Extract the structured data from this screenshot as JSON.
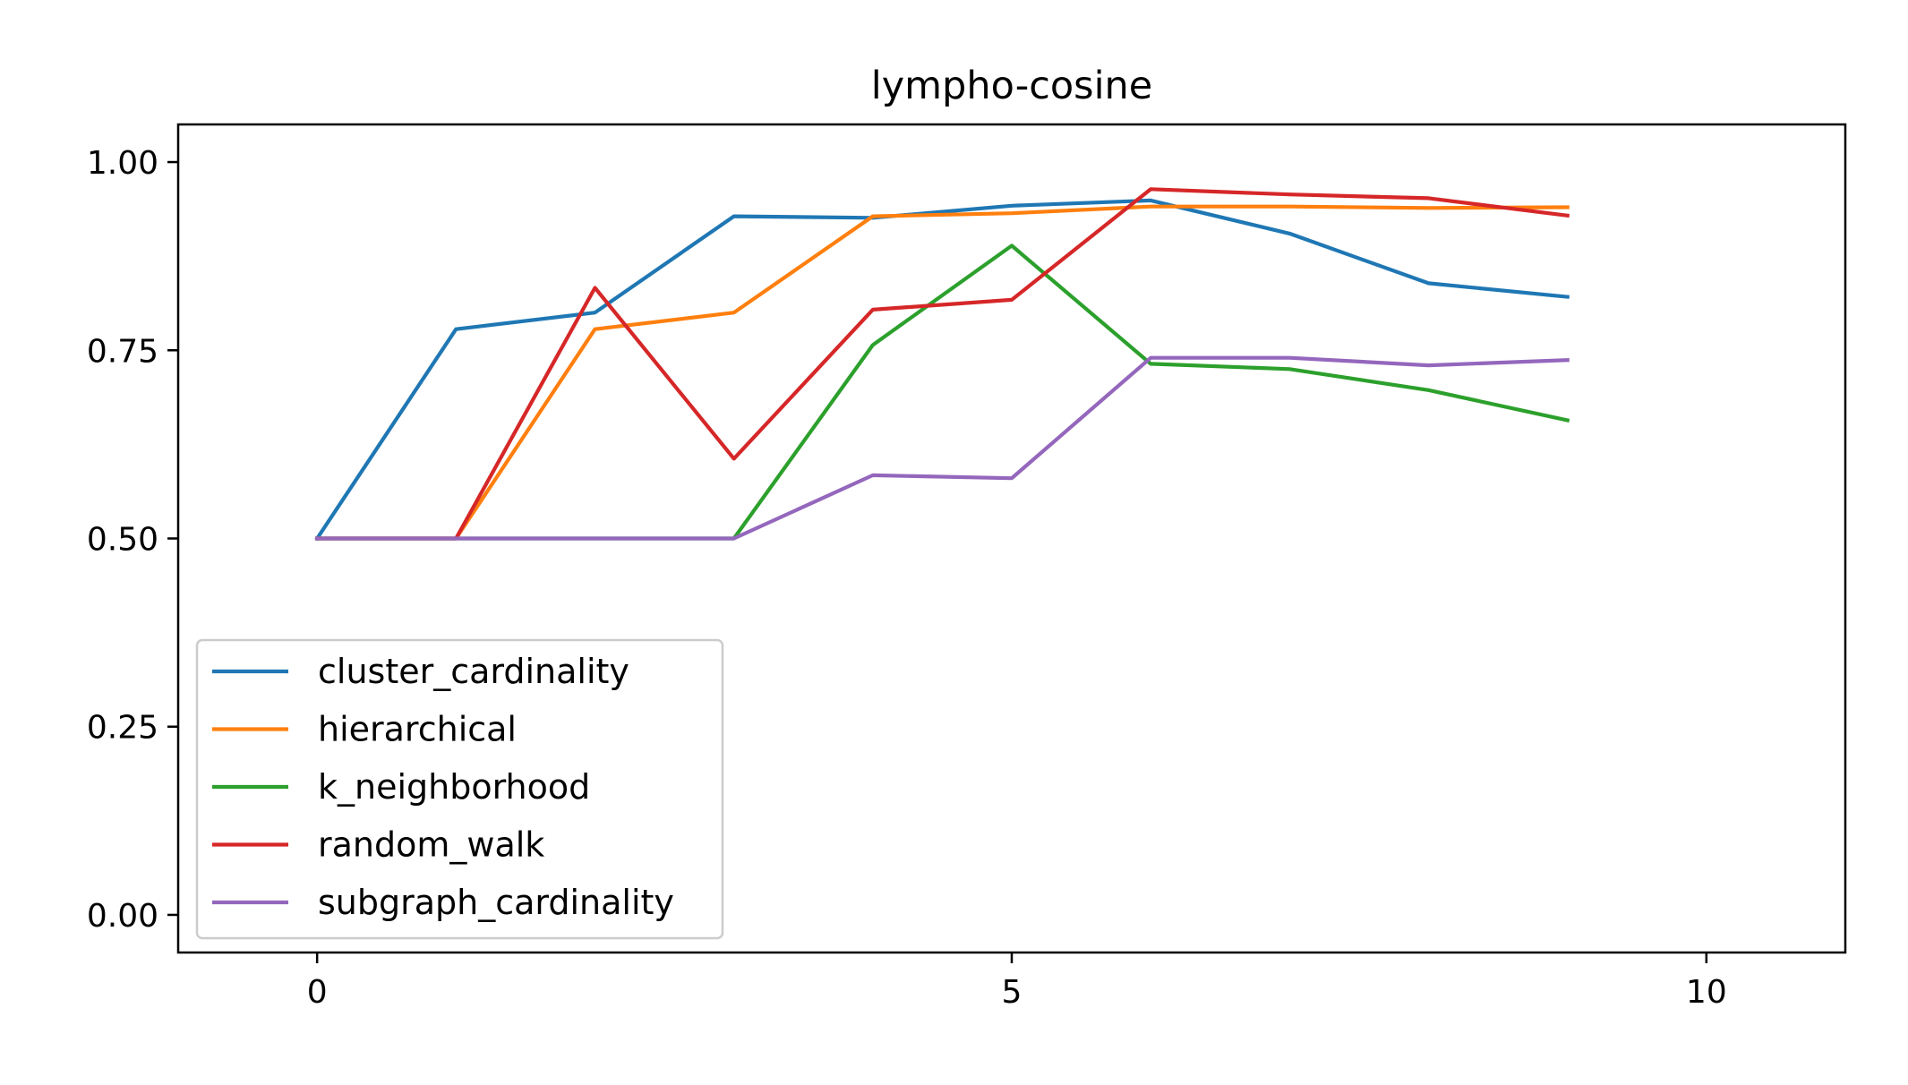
{
  "chart_data": {
    "type": "line",
    "title": "lympho-cosine",
    "xlabel": "",
    "ylabel": "",
    "xlim": [
      -1,
      11
    ],
    "ylim": [
      -0.05,
      1.05
    ],
    "xticks": [
      0,
      5,
      10
    ],
    "xtick_labels": [
      "0",
      "5",
      "10"
    ],
    "yticks": [
      0,
      0.25,
      0.5,
      0.75,
      1.0
    ],
    "ytick_labels": [
      "0.00",
      "0.25",
      "0.50",
      "0.75",
      "1.00"
    ],
    "grid": false,
    "legend_position": "lower-left",
    "x": [
      0,
      1,
      2,
      3,
      4,
      5,
      6,
      7,
      8,
      9
    ],
    "series": [
      {
        "name": "cluster_cardinality",
        "color": "#1f77b4",
        "values": [
          0.5,
          0.778,
          0.8,
          0.928,
          0.926,
          0.942,
          0.949,
          0.905,
          0.839,
          0.821
        ]
      },
      {
        "name": "hierarchical",
        "color": "#ff7f0e",
        "values": [
          0.5,
          0.5,
          0.778,
          0.8,
          0.928,
          0.932,
          0.941,
          0.941,
          0.939,
          0.94
        ]
      },
      {
        "name": "k_neighborhood",
        "color": "#2ca02c",
        "values": [
          0.5,
          0.5,
          0.5,
          0.5,
          0.757,
          0.889,
          0.732,
          0.725,
          0.697,
          0.657
        ]
      },
      {
        "name": "random_walk",
        "color": "#d62728",
        "values": [
          0.5,
          0.5,
          0.833,
          0.606,
          0.804,
          0.817,
          0.964,
          0.957,
          0.952,
          0.929
        ]
      },
      {
        "name": "subgraph_cardinality",
        "color": "#9467bd",
        "values": [
          0.5,
          0.5,
          0.5,
          0.5,
          0.584,
          0.58,
          0.74,
          0.74,
          0.73,
          0.737
        ]
      }
    ]
  }
}
